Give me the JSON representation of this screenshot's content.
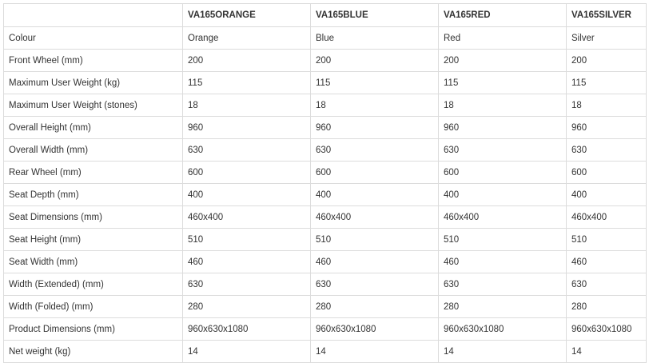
{
  "header": [
    "",
    "VA165ORANGE",
    "VA165BLUE",
    "VA165RED",
    "VA165SILVER"
  ],
  "rows": [
    [
      "Colour",
      "Orange",
      "Blue",
      "Red",
      "Silver"
    ],
    [
      "Front Wheel (mm)",
      "200",
      "200",
      "200",
      "200"
    ],
    [
      "Maximum User Weight (kg)",
      "115",
      "115",
      "115",
      "115"
    ],
    [
      "Maximum User Weight (stones)",
      "18",
      "18",
      "18",
      "18"
    ],
    [
      "Overall Height (mm)",
      "960",
      "960",
      "960",
      "960"
    ],
    [
      "Overall Width (mm)",
      "630",
      "630",
      "630",
      "630"
    ],
    [
      "Rear Wheel (mm)",
      "600",
      "600",
      "600",
      "600"
    ],
    [
      "Seat Depth (mm)",
      "400",
      "400",
      "400",
      "400"
    ],
    [
      "Seat Dimensions (mm)",
      "460x400",
      "460x400",
      "460x400",
      "460x400"
    ],
    [
      "Seat Height (mm)",
      "510",
      "510",
      "510",
      "510"
    ],
    [
      "Seat Width (mm)",
      "460",
      "460",
      "460",
      "460"
    ],
    [
      "Width (Extended) (mm)",
      "630",
      "630",
      "630",
      "630"
    ],
    [
      "Width (Folded) (mm)",
      "280",
      "280",
      "280",
      "280"
    ],
    [
      "Product Dimensions (mm)",
      "960x630x1080",
      "960x630x1080",
      "960x630x1080",
      "960x630x1080"
    ],
    [
      "Net weight (kg)",
      "14",
      "14",
      "14",
      "14"
    ]
  ]
}
